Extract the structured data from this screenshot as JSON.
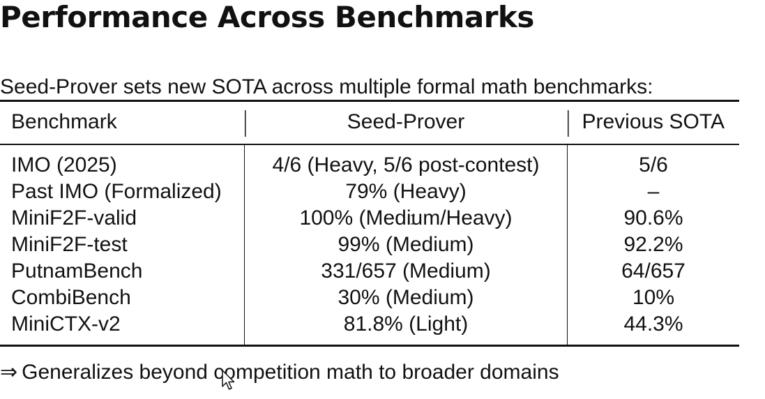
{
  "title": "Performance Across Benchmarks",
  "intro": "Seed-Prover sets new SOTA across multiple formal math benchmarks:",
  "table": {
    "headers": [
      "Benchmark",
      "Seed-Prover",
      "Previous SOTA"
    ],
    "rows": [
      [
        "IMO (2025)",
        "4/6 (Heavy, 5/6 post-contest)",
        "5/6"
      ],
      [
        "Past IMO (Formalized)",
        "79% (Heavy)",
        "–"
      ],
      [
        "MiniF2F-valid",
        "100% (Medium/Heavy)",
        "90.6%"
      ],
      [
        "MiniF2F-test",
        "99% (Medium)",
        "92.2%"
      ],
      [
        "PutnamBench",
        "331/657 (Medium)",
        "64/657"
      ],
      [
        "CombiBench",
        "30% (Medium)",
        "10%"
      ],
      [
        "MiniCTX-v2",
        "81.8% (Light)",
        "44.3%"
      ]
    ]
  },
  "footer": {
    "arrow": "⇒",
    "text": "Generalizes beyond competition math to broader domains"
  },
  "icons": {
    "mouse_pointer": "mouse-pointer-icon",
    "text_cursor": "text-cursor-icon"
  }
}
